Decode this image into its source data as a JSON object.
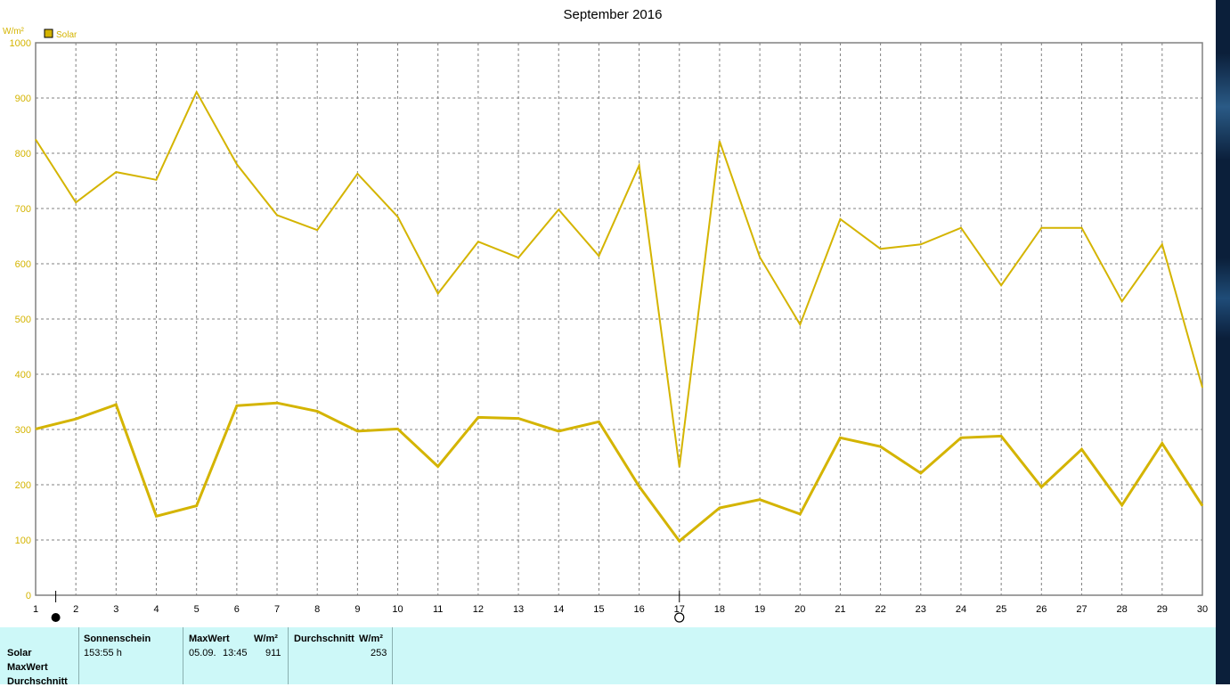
{
  "title": "September 2016",
  "unit_label": "W/m²",
  "colors": {
    "series": "#d4b400",
    "legend_swatch": "#d4b400",
    "grid": "#808080",
    "stats_bg": "#cdf8f8"
  },
  "chart_data": {
    "type": "line",
    "title": "September 2016",
    "ylabel": "W/m²",
    "ylim": [
      0,
      1000
    ],
    "yticks": [
      0,
      100,
      200,
      300,
      400,
      500,
      600,
      700,
      800,
      900,
      1000
    ],
    "x": [
      1,
      2,
      3,
      4,
      5,
      6,
      7,
      8,
      9,
      10,
      11,
      12,
      13,
      14,
      15,
      16,
      17,
      18,
      19,
      20,
      21,
      22,
      23,
      24,
      25,
      26,
      27,
      28,
      29,
      30
    ],
    "legend": [
      "Solar"
    ],
    "legend_position": "top-left",
    "grid": true,
    "series": [
      {
        "name": "Solar",
        "label": "MaxWert",
        "values": [
          825,
          711,
          766,
          752,
          911,
          780,
          688,
          661,
          763,
          685,
          546,
          640,
          611,
          698,
          614,
          778,
          232,
          822,
          612,
          490,
          681,
          627,
          635,
          665,
          561,
          665,
          665,
          532,
          635,
          376
        ]
      },
      {
        "name": "Solar",
        "label": "Durchschnitt",
        "values": [
          301,
          319,
          345,
          143,
          162,
          343,
          348,
          333,
          297,
          301,
          233,
          322,
          320,
          297,
          314,
          197,
          98,
          158,
          173,
          147,
          285,
          269,
          221,
          285,
          288,
          196,
          264,
          163,
          275,
          162
        ]
      }
    ],
    "markers": [
      {
        "x": 1.5,
        "symbol": "new-moon"
      },
      {
        "x": 17,
        "symbol": "full-moon"
      }
    ]
  },
  "stats": {
    "row_labels": [
      "Solar",
      "MaxWert",
      "Durchschnitt"
    ],
    "headers": {
      "sonnenschein": "Sonnenschein",
      "maxwert": "MaxWert",
      "maxwert_unit": "W/m²",
      "durchschnitt": "Durchschnitt",
      "durchschnitt_unit": "W/m²"
    },
    "values": {
      "sonnenschein": "153:55 h",
      "max_date": "05.09.",
      "max_time": "13:45",
      "max_value": "911",
      "avg_value": "253"
    }
  }
}
